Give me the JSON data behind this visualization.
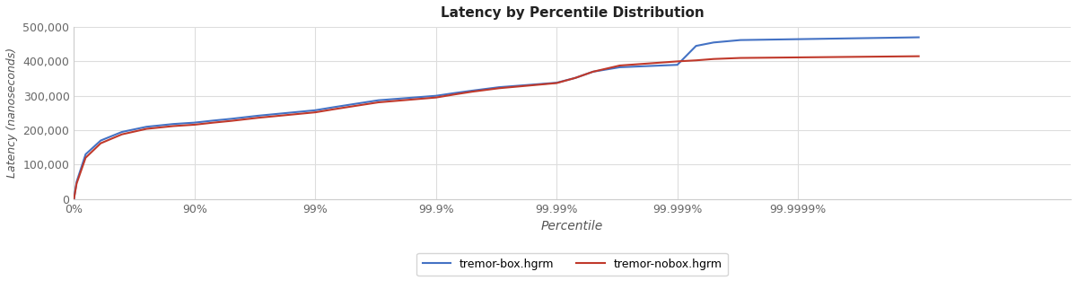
{
  "title": "Latency by Percentile Distribution",
  "xlabel": "Percentile",
  "ylabel": "Latency (nanoseconds)",
  "background_color": "#ffffff",
  "plot_bg_color": "#ffffff",
  "grid_color": "#dddddd",
  "line_box_color": "#4472c4",
  "line_nobox_color": "#c0392b",
  "legend_labels": [
    "tremor-box.hgrm",
    "tremor-nobox.hgrm"
  ],
  "ylim": [
    0,
    500000
  ],
  "tick_pcts": [
    0.0,
    0.9,
    0.99,
    0.999,
    0.9999,
    0.99999,
    0.999999
  ],
  "tick_labels": [
    "0%",
    "90%",
    "99%",
    "99.9%",
    "99.99%",
    "99.999%",
    "99.9999%"
  ],
  "box_pcts": [
    0.0,
    0.05,
    0.2,
    0.4,
    0.6,
    0.75,
    0.85,
    0.9,
    0.93,
    0.95,
    0.97,
    0.99,
    0.993,
    0.995,
    0.997,
    0.999,
    0.9993,
    0.9995,
    0.9997,
    0.9999,
    0.99993,
    0.99995,
    0.99997,
    0.99999,
    0.999993,
    0.999995,
    0.999997,
    0.9999999
  ],
  "box_lat": [
    0,
    50000,
    130000,
    170000,
    195000,
    210000,
    218000,
    222000,
    228000,
    233000,
    242000,
    258000,
    267000,
    275000,
    287000,
    300000,
    308000,
    315000,
    325000,
    338000,
    352000,
    370000,
    383000,
    390000,
    445000,
    455000,
    462000,
    470000
  ],
  "nobox_pcts": [
    0.0,
    0.05,
    0.2,
    0.4,
    0.6,
    0.75,
    0.85,
    0.9,
    0.93,
    0.95,
    0.97,
    0.99,
    0.993,
    0.995,
    0.997,
    0.999,
    0.9993,
    0.9995,
    0.9997,
    0.9999,
    0.99993,
    0.99995,
    0.99997,
    0.99999,
    0.999993,
    0.999995,
    0.999997,
    0.9999999
  ],
  "nobox_lat": [
    0,
    45000,
    120000,
    162000,
    188000,
    204000,
    212000,
    216000,
    222000,
    227000,
    236000,
    252000,
    261000,
    269000,
    281000,
    295000,
    304000,
    312000,
    322000,
    337000,
    352000,
    370000,
    388000,
    400000,
    403000,
    407000,
    410000,
    415000
  ]
}
